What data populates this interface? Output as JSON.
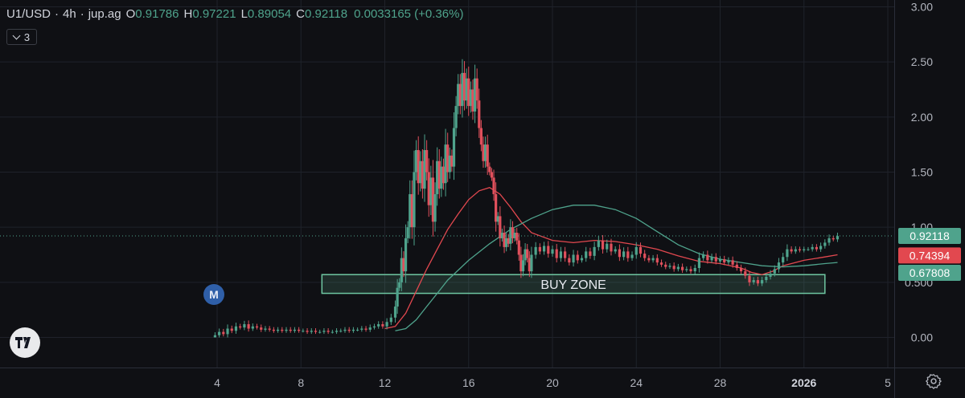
{
  "header": {
    "symbol": "U1/USD",
    "interval": "4h",
    "source": "jup.ag",
    "open_label": "O",
    "open": "0.91786",
    "high_label": "H",
    "high": "0.97221",
    "low_label": "L",
    "low": "0.89054",
    "close_label": "C",
    "close": "0.92118",
    "change": "0.0033165 (+0.36%)",
    "sep": "·"
  },
  "indicators_count": "3",
  "marker_label": "M",
  "zone_label": "BUY ZONE",
  "colors": {
    "up": "#4fa38c",
    "down": "#e0505c",
    "background": "#0f1014",
    "ma_fast": "#e2484f",
    "ma_slow": "#4fa38c",
    "zone": "#6fc7a2",
    "grid": "#1f222a"
  },
  "chart_data": {
    "type": "candlestick",
    "title": "",
    "xlabel": "",
    "ylabel": "",
    "ylim": [
      -0.1,
      3.0
    ],
    "yticks": [
      0.0,
      0.5,
      1.0,
      1.5,
      2.0,
      2.5,
      3.0
    ],
    "ytick_labels": [
      "0.00",
      "0.500",
      "1.00",
      "1.50",
      "2.00",
      "2.50",
      "3.00"
    ],
    "x_range_day": [
      0,
      41.5
    ],
    "xtick_days": [
      4,
      8,
      12,
      16,
      20,
      24,
      28,
      32,
      36
    ],
    "xtick_labels": [
      "4",
      "8",
      "12",
      "16",
      "20",
      "24",
      "28",
      "2026",
      "5"
    ],
    "grid": true,
    "price_labels": [
      {
        "name": "last",
        "value": "0.92118",
        "price": 0.92118,
        "color": "#4fa38c"
      },
      {
        "name": "ma_fast",
        "value": "0.74394",
        "price": 0.74394,
        "color": "#e2484f"
      },
      {
        "name": "ma_slow",
        "value": "0.67808",
        "price": 0.67808,
        "color": "#4fa38c"
      }
    ],
    "buy_zone": {
      "day_start": 9.0,
      "day_end": 33.0,
      "price_low": 0.4,
      "price_high": 0.57
    },
    "candles": [
      [
        3.9,
        0.0,
        0.02
      ],
      [
        4.1,
        0.02,
        0.05
      ],
      [
        4.3,
        0.05,
        0.03
      ],
      [
        4.5,
        0.03,
        0.08
      ],
      [
        4.7,
        0.08,
        0.06
      ],
      [
        4.9,
        0.06,
        0.1
      ],
      [
        5.1,
        0.1,
        0.09
      ],
      [
        5.3,
        0.09,
        0.12
      ],
      [
        5.5,
        0.12,
        0.08
      ],
      [
        5.7,
        0.08,
        0.1
      ],
      [
        5.9,
        0.1,
        0.09
      ],
      [
        6.1,
        0.09,
        0.07
      ],
      [
        6.3,
        0.07,
        0.08
      ],
      [
        6.5,
        0.08,
        0.07
      ],
      [
        6.7,
        0.07,
        0.06
      ],
      [
        6.9,
        0.06,
        0.07
      ],
      [
        7.1,
        0.07,
        0.06
      ],
      [
        7.3,
        0.06,
        0.07
      ],
      [
        7.5,
        0.07,
        0.06
      ],
      [
        7.7,
        0.06,
        0.07
      ],
      [
        7.9,
        0.07,
        0.06
      ],
      [
        8.1,
        0.06,
        0.06
      ],
      [
        8.3,
        0.06,
        0.05
      ],
      [
        8.5,
        0.05,
        0.06
      ],
      [
        8.7,
        0.06,
        0.05
      ],
      [
        8.9,
        0.05,
        0.05
      ],
      [
        9.1,
        0.05,
        0.06
      ],
      [
        9.3,
        0.06,
        0.05
      ],
      [
        9.5,
        0.05,
        0.05
      ],
      [
        9.7,
        0.05,
        0.06
      ],
      [
        9.9,
        0.06,
        0.06
      ],
      [
        10.1,
        0.06,
        0.07
      ],
      [
        10.3,
        0.07,
        0.06
      ],
      [
        10.5,
        0.06,
        0.07
      ],
      [
        10.7,
        0.07,
        0.07
      ],
      [
        10.9,
        0.07,
        0.08
      ],
      [
        11.1,
        0.08,
        0.07
      ],
      [
        11.3,
        0.07,
        0.09
      ],
      [
        11.5,
        0.09,
        0.1
      ],
      [
        11.7,
        0.1,
        0.12
      ],
      [
        11.9,
        0.12,
        0.1
      ],
      [
        12.1,
        0.1,
        0.14
      ],
      [
        12.3,
        0.14,
        0.18
      ],
      [
        12.5,
        0.18,
        0.28
      ],
      [
        12.6,
        0.28,
        0.45
      ],
      [
        12.7,
        0.45,
        0.5
      ],
      [
        12.8,
        0.5,
        0.72
      ],
      [
        12.9,
        0.72,
        0.6
      ],
      [
        13.0,
        0.6,
        0.9
      ],
      [
        13.1,
        0.9,
        1.0
      ],
      [
        13.2,
        1.0,
        1.3
      ],
      [
        13.3,
        1.3,
        1.0
      ],
      [
        13.4,
        1.0,
        1.5
      ],
      [
        13.5,
        1.5,
        1.7
      ],
      [
        13.6,
        1.7,
        1.4
      ],
      [
        13.7,
        1.4,
        1.6
      ],
      [
        13.8,
        1.6,
        1.35
      ],
      [
        13.9,
        1.35,
        1.7
      ],
      [
        14.0,
        1.7,
        1.5
      ],
      [
        14.1,
        1.5,
        1.2
      ],
      [
        14.2,
        1.2,
        1.45
      ],
      [
        14.3,
        1.45,
        1.05
      ],
      [
        14.4,
        1.05,
        1.3
      ],
      [
        14.5,
        1.3,
        1.6
      ],
      [
        14.6,
        1.6,
        1.35
      ],
      [
        14.7,
        1.35,
        1.55
      ],
      [
        14.8,
        1.55,
        1.4
      ],
      [
        14.9,
        1.4,
        1.75
      ],
      [
        15.0,
        1.75,
        1.5
      ],
      [
        15.1,
        1.5,
        1.65
      ],
      [
        15.2,
        1.65,
        1.55
      ],
      [
        15.3,
        1.55,
        1.9
      ],
      [
        15.4,
        1.9,
        2.1
      ],
      [
        15.5,
        2.1,
        2.3
      ],
      [
        15.6,
        2.3,
        2.1
      ],
      [
        15.7,
        2.1,
        2.4
      ],
      [
        15.8,
        2.4,
        2.15
      ],
      [
        15.9,
        2.15,
        2.35
      ],
      [
        16.0,
        2.35,
        2.1
      ],
      [
        16.1,
        2.1,
        2.25
      ],
      [
        16.2,
        2.25,
        2.05
      ],
      [
        16.3,
        2.05,
        2.35
      ],
      [
        16.4,
        2.35,
        2.15
      ],
      [
        16.5,
        2.15,
        1.9
      ],
      [
        16.6,
        1.9,
        1.75
      ],
      [
        16.7,
        1.75,
        1.6
      ],
      [
        16.8,
        1.6,
        1.75
      ],
      [
        16.9,
        1.75,
        1.55
      ],
      [
        17.0,
        1.55,
        1.5
      ],
      [
        17.1,
        1.5,
        1.45
      ],
      [
        17.2,
        1.45,
        1.3
      ],
      [
        17.3,
        1.3,
        1.05
      ],
      [
        17.4,
        1.05,
        1.1
      ],
      [
        17.5,
        1.1,
        0.9
      ],
      [
        17.6,
        0.9,
        0.95
      ],
      [
        17.7,
        0.95,
        0.82
      ],
      [
        17.8,
        0.82,
        0.9
      ],
      [
        17.9,
        0.9,
        0.85
      ],
      [
        18.0,
        0.85,
        1.0
      ],
      [
        18.1,
        1.0,
        0.9
      ],
      [
        18.2,
        0.9,
        0.95
      ],
      [
        18.3,
        0.95,
        0.88
      ],
      [
        18.4,
        0.88,
        0.75
      ],
      [
        18.5,
        0.75,
        0.6
      ],
      [
        18.6,
        0.6,
        0.7
      ],
      [
        18.7,
        0.7,
        0.8
      ],
      [
        18.8,
        0.8,
        0.72
      ],
      [
        18.9,
        0.72,
        0.6
      ],
      [
        19.0,
        0.6,
        0.75
      ],
      [
        19.2,
        0.75,
        0.82
      ],
      [
        19.4,
        0.82,
        0.78
      ],
      [
        19.6,
        0.78,
        0.83
      ],
      [
        19.8,
        0.83,
        0.76
      ],
      [
        20.0,
        0.76,
        0.8
      ],
      [
        20.2,
        0.8,
        0.72
      ],
      [
        20.4,
        0.72,
        0.78
      ],
      [
        20.6,
        0.78,
        0.72
      ],
      [
        20.8,
        0.72,
        0.68
      ],
      [
        21.0,
        0.68,
        0.75
      ],
      [
        21.2,
        0.75,
        0.7
      ],
      [
        21.4,
        0.7,
        0.72
      ],
      [
        21.6,
        0.72,
        0.78
      ],
      [
        21.8,
        0.78,
        0.74
      ],
      [
        22.0,
        0.74,
        0.82
      ],
      [
        22.2,
        0.82,
        0.88
      ],
      [
        22.4,
        0.88,
        0.8
      ],
      [
        22.6,
        0.8,
        0.85
      ],
      [
        22.8,
        0.85,
        0.78
      ],
      [
        23.0,
        0.78,
        0.8
      ],
      [
        23.2,
        0.8,
        0.73
      ],
      [
        23.4,
        0.73,
        0.78
      ],
      [
        23.6,
        0.78,
        0.72
      ],
      [
        23.8,
        0.72,
        0.75
      ],
      [
        24.0,
        0.75,
        0.82
      ],
      [
        24.2,
        0.82,
        0.76
      ],
      [
        24.4,
        0.76,
        0.72
      ],
      [
        24.6,
        0.72,
        0.7
      ],
      [
        24.8,
        0.7,
        0.72
      ],
      [
        25.0,
        0.72,
        0.68
      ],
      [
        25.2,
        0.68,
        0.66
      ],
      [
        25.4,
        0.66,
        0.64
      ],
      [
        25.6,
        0.64,
        0.65
      ],
      [
        25.8,
        0.65,
        0.62
      ],
      [
        26.0,
        0.62,
        0.64
      ],
      [
        26.2,
        0.64,
        0.61
      ],
      [
        26.4,
        0.61,
        0.62
      ],
      [
        26.6,
        0.62,
        0.6
      ],
      [
        26.8,
        0.6,
        0.63
      ],
      [
        27.0,
        0.63,
        0.72
      ],
      [
        27.2,
        0.72,
        0.75
      ],
      [
        27.4,
        0.75,
        0.7
      ],
      [
        27.6,
        0.7,
        0.73
      ],
      [
        27.8,
        0.73,
        0.69
      ],
      [
        28.0,
        0.69,
        0.71
      ],
      [
        28.2,
        0.71,
        0.68
      ],
      [
        28.4,
        0.68,
        0.7
      ],
      [
        28.6,
        0.7,
        0.66
      ],
      [
        28.8,
        0.66,
        0.63
      ],
      [
        29.0,
        0.63,
        0.6
      ],
      [
        29.2,
        0.6,
        0.56
      ],
      [
        29.4,
        0.56,
        0.5
      ],
      [
        29.6,
        0.5,
        0.52
      ],
      [
        29.8,
        0.52,
        0.49
      ],
      [
        30.0,
        0.49,
        0.52
      ],
      [
        30.2,
        0.52,
        0.55
      ],
      [
        30.4,
        0.55,
        0.58
      ],
      [
        30.6,
        0.58,
        0.62
      ],
      [
        30.8,
        0.62,
        0.68
      ],
      [
        31.0,
        0.68,
        0.73
      ],
      [
        31.2,
        0.73,
        0.8
      ],
      [
        31.4,
        0.8,
        0.78
      ],
      [
        31.6,
        0.78,
        0.8
      ],
      [
        31.8,
        0.8,
        0.79
      ],
      [
        32.0,
        0.79,
        0.8
      ],
      [
        32.2,
        0.8,
        0.8
      ],
      [
        32.4,
        0.8,
        0.82
      ],
      [
        32.6,
        0.82,
        0.8
      ],
      [
        32.8,
        0.8,
        0.83
      ],
      [
        33.0,
        0.83,
        0.86
      ],
      [
        33.2,
        0.86,
        0.9
      ],
      [
        33.4,
        0.9,
        0.89
      ],
      [
        33.6,
        0.89,
        0.92
      ]
    ],
    "series": [
      {
        "key": "ma_fast",
        "color": "#e2484f",
        "points": [
          [
            12.0,
            0.08
          ],
          [
            12.5,
            0.1
          ],
          [
            13.0,
            0.22
          ],
          [
            13.5,
            0.42
          ],
          [
            14.0,
            0.62
          ],
          [
            14.5,
            0.8
          ],
          [
            15.0,
            0.98
          ],
          [
            15.5,
            1.12
          ],
          [
            16.0,
            1.25
          ],
          [
            16.5,
            1.33
          ],
          [
            17.0,
            1.36
          ],
          [
            17.5,
            1.3
          ],
          [
            18.0,
            1.18
          ],
          [
            18.5,
            1.05
          ],
          [
            19.0,
            0.95
          ],
          [
            20.0,
            0.88
          ],
          [
            21.0,
            0.86
          ],
          [
            22.0,
            0.88
          ],
          [
            23.0,
            0.87
          ],
          [
            24.0,
            0.84
          ],
          [
            25.0,
            0.8
          ],
          [
            26.0,
            0.74
          ],
          [
            27.0,
            0.69
          ],
          [
            28.0,
            0.67
          ],
          [
            29.0,
            0.63
          ],
          [
            29.5,
            0.59
          ],
          [
            30.0,
            0.57
          ],
          [
            30.5,
            0.6
          ],
          [
            31.0,
            0.65
          ],
          [
            32.0,
            0.7
          ],
          [
            33.0,
            0.73
          ],
          [
            33.6,
            0.75
          ]
        ]
      },
      {
        "key": "ma_slow",
        "color": "#4fa38c",
        "points": [
          [
            12.5,
            0.06
          ],
          [
            13.0,
            0.08
          ],
          [
            13.5,
            0.16
          ],
          [
            14.0,
            0.28
          ],
          [
            14.5,
            0.4
          ],
          [
            15.0,
            0.52
          ],
          [
            16.0,
            0.7
          ],
          [
            17.0,
            0.85
          ],
          [
            18.0,
            0.98
          ],
          [
            19.0,
            1.08
          ],
          [
            20.0,
            1.16
          ],
          [
            21.0,
            1.2
          ],
          [
            22.0,
            1.2
          ],
          [
            23.0,
            1.16
          ],
          [
            24.0,
            1.08
          ],
          [
            25.0,
            0.96
          ],
          [
            26.0,
            0.84
          ],
          [
            27.0,
            0.76
          ],
          [
            28.0,
            0.71
          ],
          [
            29.0,
            0.68
          ],
          [
            30.0,
            0.65
          ],
          [
            31.0,
            0.64
          ],
          [
            32.0,
            0.65
          ],
          [
            33.0,
            0.67
          ],
          [
            33.6,
            0.68
          ]
        ]
      }
    ]
  }
}
